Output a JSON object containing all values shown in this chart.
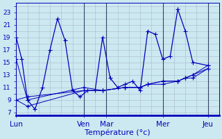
{
  "background_color": "#cce8f0",
  "grid_color": "#aabbcc",
  "line_color": "#0000bb",
  "xlabel": "Température (°c)",
  "yticks": [
    7,
    9,
    11,
    13,
    15,
    17,
    19,
    21,
    23
  ],
  "ylim": [
    6.5,
    24.5
  ],
  "xlim": [
    0,
    108
  ],
  "day_tick_positions": [
    0,
    36,
    48,
    78,
    102
  ],
  "day_labels": [
    "Lun",
    "Ven",
    "Mar",
    "Mer",
    "Jeu"
  ],
  "series0_x": [
    0,
    3,
    6,
    10,
    14,
    18,
    22,
    26,
    30,
    34,
    38,
    42,
    46,
    50,
    54,
    58,
    62,
    66,
    70,
    74,
    78,
    82,
    86,
    90,
    94,
    102
  ],
  "series0_y": [
    19,
    15.5,
    9,
    7.5,
    11,
    17,
    22,
    18.5,
    10.5,
    9.5,
    10.5,
    10.5,
    19,
    12.5,
    11,
    11.5,
    12,
    10.5,
    20,
    19.5,
    15.5,
    16,
    23.5,
    20,
    15,
    14.5
  ],
  "series1_x": [
    0,
    6,
    36,
    46,
    58,
    66,
    70,
    78,
    86,
    90,
    94,
    102
  ],
  "series1_y": [
    15.5,
    9,
    11,
    10.5,
    11,
    11,
    11.5,
    12,
    12,
    12.5,
    13,
    14.5
  ],
  "series2_x": [
    0,
    6,
    36,
    46,
    58,
    66,
    70,
    78,
    86,
    90,
    94,
    102
  ],
  "series2_y": [
    9,
    8,
    10.5,
    10.5,
    11,
    11,
    11.5,
    12,
    12,
    12.5,
    13,
    14
  ],
  "series3_x": [
    0,
    6,
    36,
    46,
    58,
    66,
    70,
    78,
    86,
    90,
    94,
    102
  ],
  "series3_y": [
    9,
    9.5,
    10.5,
    10.5,
    11,
    11,
    11.5,
    11.5,
    12,
    12.5,
    12.5,
    14
  ]
}
